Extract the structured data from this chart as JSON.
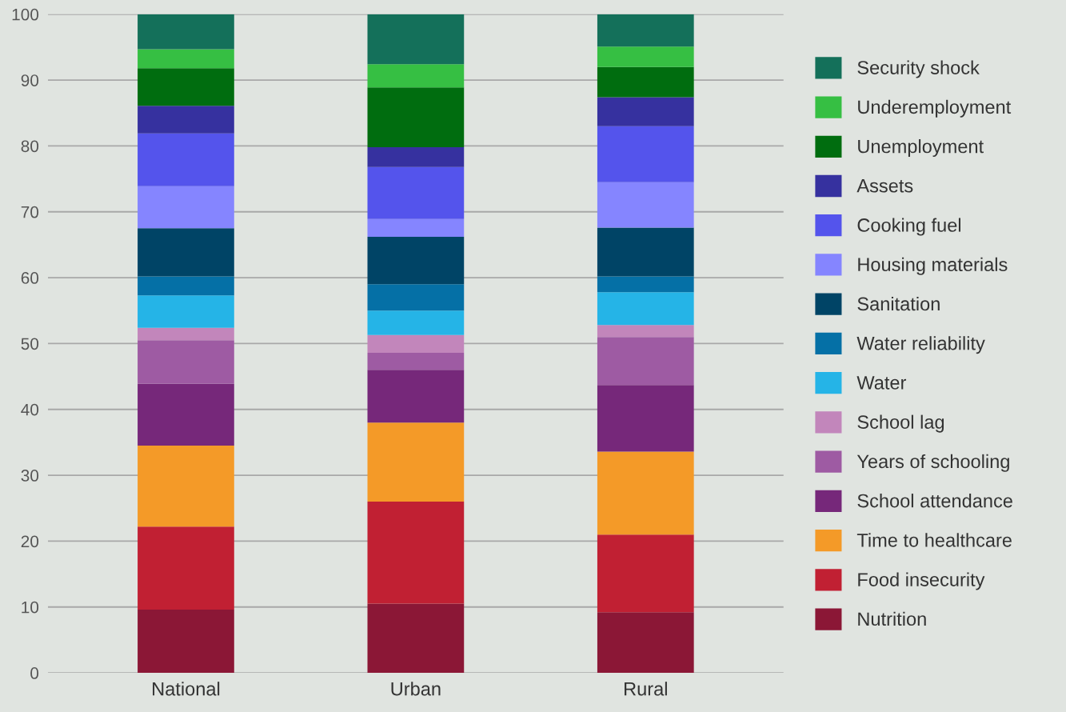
{
  "chart_data": {
    "type": "bar",
    "stacked": true,
    "categories": [
      "National",
      "Urban",
      "Rural"
    ],
    "ylim": [
      0,
      100
    ],
    "yticks": [
      0,
      10,
      20,
      30,
      40,
      50,
      60,
      70,
      80,
      90,
      100
    ],
    "grid": "y",
    "legend": "right",
    "series": [
      {
        "name": "Nutrition",
        "color": "#8b1736",
        "values": [
          9.6,
          10.5,
          9.2
        ]
      },
      {
        "name": "Food insecurity",
        "color": "#c12033",
        "values": [
          12.6,
          15.5,
          11.8
        ]
      },
      {
        "name": "Time to healthcare",
        "color": "#f49a28",
        "values": [
          12.3,
          12.0,
          12.6
        ]
      },
      {
        "name": "School attendance",
        "color": "#76287a",
        "values": [
          9.4,
          8.0,
          10.1
        ]
      },
      {
        "name": "Years of schooling",
        "color": "#9e5ba3",
        "values": [
          6.6,
          2.6,
          7.3
        ]
      },
      {
        "name": "School lag",
        "color": "#c286bb",
        "values": [
          1.9,
          2.7,
          1.8
        ]
      },
      {
        "name": "Water",
        "color": "#25b4e7",
        "values": [
          4.9,
          3.7,
          5.0
        ]
      },
      {
        "name": "Water reliability",
        "color": "#0570a6",
        "values": [
          2.9,
          4.0,
          2.4
        ]
      },
      {
        "name": "Sanitation",
        "color": "#004466",
        "values": [
          7.3,
          7.2,
          7.4
        ]
      },
      {
        "name": "Housing materials",
        "color": "#8585ff",
        "values": [
          6.4,
          2.7,
          6.9
        ]
      },
      {
        "name": "Cooking fuel",
        "color": "#5454ec",
        "values": [
          8.0,
          7.9,
          8.5
        ]
      },
      {
        "name": "Assets",
        "color": "#36319f",
        "values": [
          4.2,
          3.0,
          4.4
        ]
      },
      {
        "name": "Unemployment",
        "color": "#006d0f",
        "values": [
          5.7,
          9.1,
          4.6
        ]
      },
      {
        "name": "Underemployment",
        "color": "#36bf43",
        "values": [
          2.9,
          3.5,
          3.1
        ]
      },
      {
        "name": "Security shock",
        "color": "#14705a",
        "values": [
          5.3,
          7.6,
          4.9
        ]
      }
    ]
  }
}
